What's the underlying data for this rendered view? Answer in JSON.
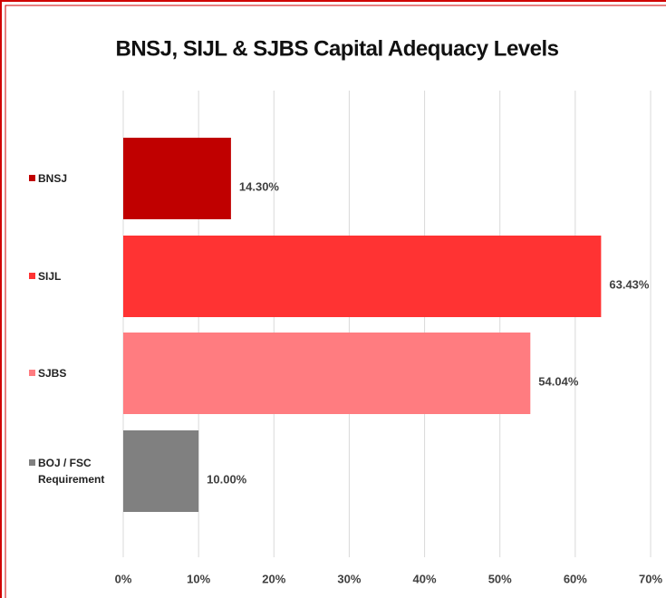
{
  "chart_data": {
    "type": "hbar",
    "title": "BNSJ, SIJL & SJBS Capital Adequacy Levels",
    "categories": [
      "BNSJ",
      "SIJL",
      "SJBS",
      "BOJ / FSC Requirement"
    ],
    "values": [
      14.3,
      63.43,
      54.04,
      10.0
    ],
    "value_labels": [
      "14.30%",
      "63.43%",
      "54.04%",
      "10.00%"
    ],
    "colors": [
      "#c00000",
      "#ff3333",
      "#ff7c80",
      "#808080"
    ],
    "xlim": [
      0,
      70
    ],
    "xticks": [
      {
        "value": 0,
        "label": "0%"
      },
      {
        "value": 10,
        "label": "10%"
      },
      {
        "value": 20,
        "label": "20%"
      },
      {
        "value": 30,
        "label": "30%"
      },
      {
        "value": 40,
        "label": "40%"
      },
      {
        "value": 50,
        "label": "50%"
      },
      {
        "value": 60,
        "label": "60%"
      },
      {
        "value": 70,
        "label": "70%"
      }
    ],
    "grid": true
  }
}
